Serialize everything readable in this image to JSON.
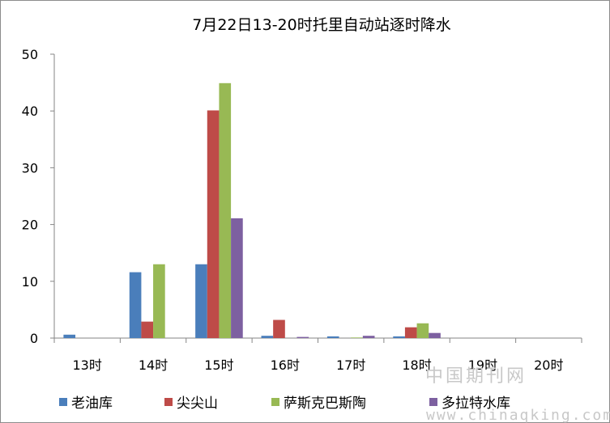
{
  "chart_data": {
    "type": "bar",
    "title": "7月22日13-20时托里自动站逐时降水",
    "categories": [
      "13时",
      "14时",
      "15时",
      "16时",
      "17时",
      "18时",
      "19时",
      "20时"
    ],
    "series": [
      {
        "name": "老油库",
        "color": "#4a7ebb",
        "values": [
          0.6,
          11.6,
          13.0,
          0.4,
          0.3,
          0.3,
          0,
          0
        ]
      },
      {
        "name": "尖尖山",
        "color": "#be4b48",
        "values": [
          0,
          2.9,
          40.1,
          3.2,
          0,
          1.9,
          0,
          0
        ]
      },
      {
        "name": "萨斯克巴斯陶",
        "color": "#98b954",
        "values": [
          0,
          13.0,
          44.9,
          0,
          0.1,
          2.6,
          0,
          0
        ]
      },
      {
        "name": "多拉特水库",
        "color": "#7d60a0",
        "values": [
          0,
          0,
          21.1,
          0.2,
          0.4,
          0.9,
          0,
          0
        ]
      }
    ],
    "ylim": [
      0,
      50
    ],
    "yticks": [
      0,
      10,
      20,
      30,
      40,
      50
    ],
    "grid": false,
    "legend_position": "bottom"
  },
  "watermark": {
    "line1": "中国期刊网",
    "line2": "www.chinaqking.com"
  }
}
